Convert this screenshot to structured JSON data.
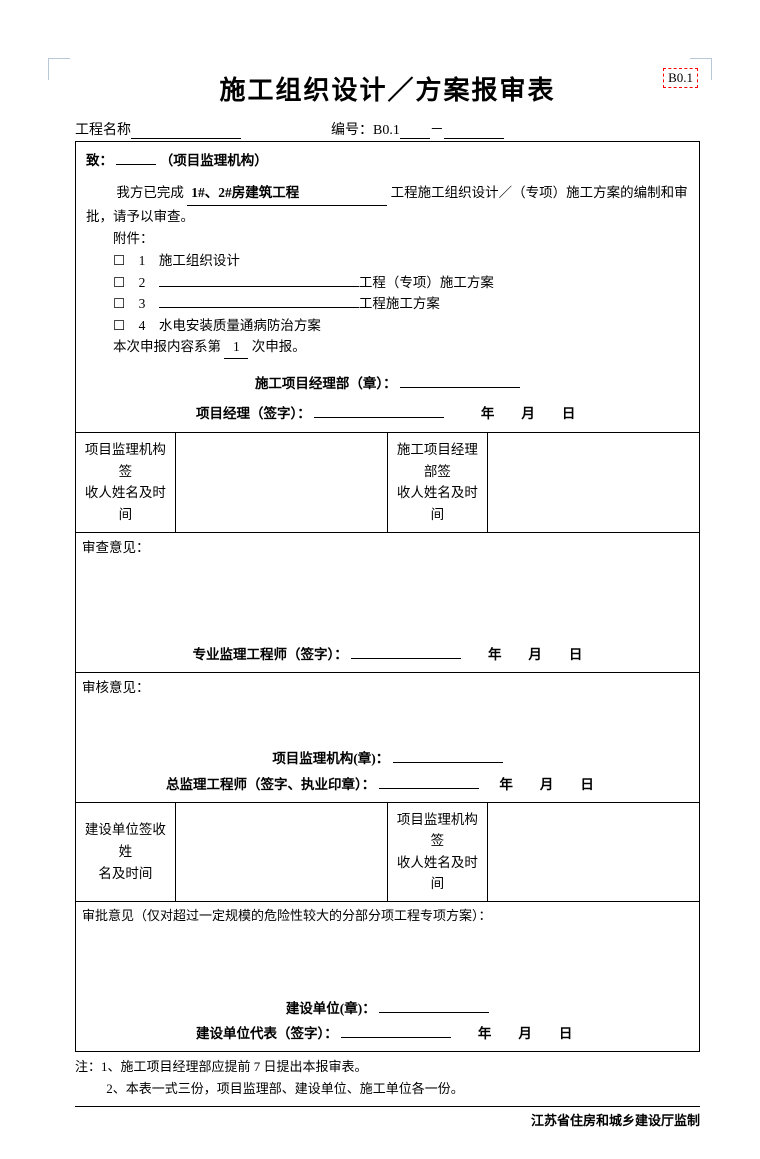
{
  "corner_tag": "B0.1",
  "title": "施工组织设计／方案报审表",
  "header": {
    "project_label": "工程名称",
    "project_value": "",
    "code_label": "编号：B0.1",
    "code_sep": "－",
    "code_value": ""
  },
  "section1": {
    "to_label": "致：",
    "to_value": "",
    "to_suffix": "（项目监理机构）",
    "line1_prefix": "我方已完成",
    "line1_bold": "1#、2#房建筑工程",
    "line1_suffix": "工程施工组织设计／（专项）施工方案的编制和审批，请予以审查。",
    "attach_label": "附件：",
    "items": [
      {
        "num": "1",
        "text": "施工组织设计",
        "blank_before": false,
        "suffix": ""
      },
      {
        "num": "2",
        "text": "",
        "blank_before": true,
        "suffix": "工程（专项）施工方案"
      },
      {
        "num": "3",
        "text": "",
        "blank_before": true,
        "suffix": "工程施工方案"
      },
      {
        "num": "4",
        "text": "水电安装质量通病防治方案",
        "blank_before": false,
        "suffix": ""
      }
    ],
    "submit_prefix": "本次申报内容系第",
    "submit_num": "1",
    "submit_suffix": "次申报。",
    "stamp_label": "施工项目经理部（章）：",
    "pm_label": "项目经理（签字）：",
    "date": "年　　月　　日"
  },
  "sig_row1": {
    "left": [
      "项目监理机构签",
      "收人姓名及时间"
    ],
    "right": [
      "施工项目经理部签",
      "收人姓名及时间"
    ]
  },
  "review": {
    "label": "审查意见：",
    "sig_label": "专业监理工程师（签字）：",
    "date": "年　　月　　日"
  },
  "audit": {
    "label": "审核意见：",
    "org_label": "项目监理机构(章)：",
    "chief_label": "总监理工程师（签字、执业印章）：",
    "date": "年　　月　　日"
  },
  "sig_row2": {
    "left": [
      "建设单位签收姓",
      "名及时间"
    ],
    "right": [
      "项目监理机构签",
      "收人姓名及时间"
    ]
  },
  "approval": {
    "label": "审批意见（仅对超过一定规模的危险性较大的分部分项工程专项方案）：",
    "unit_label": "建设单位(章)：",
    "rep_label": "建设单位代表（签字）：",
    "date": "年　　月　　日"
  },
  "notes": [
    "注：1、施工项目经理部应提前 7 日提出本报审表。",
    "2、本表一式三份，项目监理部、建设单位、施工单位各一份。"
  ],
  "footer": "江苏省住房和城乡建设厅监制"
}
